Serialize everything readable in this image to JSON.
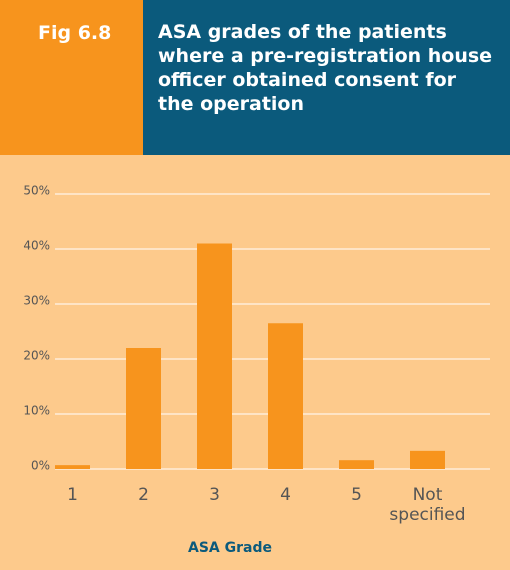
{
  "figure_label": "Fig 6.8",
  "chart_data": {
    "type": "bar",
    "title": "ASA grades of the patients where a pre-registration house officer obtained consent for the operation",
    "x_label": "ASA Grade",
    "categories": [
      "1",
      "2",
      "3",
      "4",
      "5",
      "Not specified"
    ],
    "values": [
      0.7,
      22,
      41,
      26.5,
      1.6,
      3.3
    ],
    "color": "#f7941d",
    "ylim": [
      0,
      50
    ],
    "yticks": [
      {
        "value": 0,
        "label": "0%"
      },
      {
        "value": 10,
        "label": "10%"
      },
      {
        "value": 20,
        "label": "20%"
      },
      {
        "value": 30,
        "label": "30%"
      },
      {
        "value": 40,
        "label": "40%"
      },
      {
        "value": 50,
        "label": "50%"
      }
    ],
    "grid": true
  }
}
